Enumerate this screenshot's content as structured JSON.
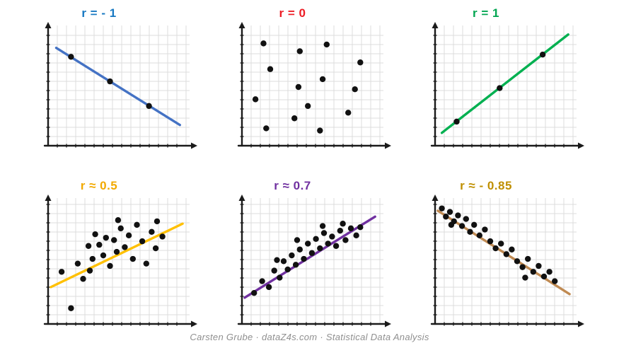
{
  "page": {
    "background": "#ffffff"
  },
  "style": {
    "grid_color": "#dcdcdc",
    "axis_color": "#1a1a1a",
    "point_color": "#111111"
  },
  "footer": {
    "text": "Carsten Grube · dataZ4s.com · Statistical Data Analysis"
  },
  "chart_data": [
    {
      "type": "scatter",
      "title": "r = - 1",
      "title_color": "#1778c2",
      "line_color": "#4472c4",
      "xlim": [
        0,
        10
      ],
      "ylim": [
        0,
        10
      ],
      "grid": true,
      "trendline": {
        "x1": 0.5,
        "y1": 8.5,
        "x2": 9.7,
        "y2": 1.6
      },
      "points": [
        [
          1.6,
          7.7
        ],
        [
          4.5,
          5.5
        ],
        [
          7.4,
          3.3
        ]
      ]
    },
    {
      "type": "scatter",
      "title": "r = 0",
      "title_color": "#ed1c24",
      "line_color": null,
      "xlim": [
        0,
        10
      ],
      "ylim": [
        0,
        10
      ],
      "grid": true,
      "trendline": null,
      "points": [
        [
          1.5,
          8.9
        ],
        [
          4.2,
          8.2
        ],
        [
          6.2,
          8.8
        ],
        [
          8.7,
          7.2
        ],
        [
          2.0,
          6.6
        ],
        [
          5.9,
          5.7
        ],
        [
          4.1,
          5.0
        ],
        [
          8.3,
          4.8
        ],
        [
          0.9,
          3.9
        ],
        [
          4.8,
          3.3
        ],
        [
          7.8,
          2.7
        ],
        [
          1.7,
          1.3
        ],
        [
          5.7,
          1.1
        ],
        [
          3.8,
          2.2
        ]
      ]
    },
    {
      "type": "scatter",
      "title": "r = 1",
      "title_color": "#00a550",
      "line_color": "#00b050",
      "xlim": [
        0,
        10
      ],
      "ylim": [
        0,
        10
      ],
      "grid": true,
      "trendline": {
        "x1": 0.4,
        "y1": 0.9,
        "x2": 9.8,
        "y2": 9.7
      },
      "points": [
        [
          1.5,
          1.9
        ],
        [
          4.7,
          4.9
        ],
        [
          7.9,
          7.9
        ]
      ]
    },
    {
      "type": "scatter",
      "title": "r ≈ 0.5",
      "title_color": "#f2a900",
      "line_color": "#ffc000",
      "xlim": [
        0,
        10
      ],
      "ylim": [
        0,
        10
      ],
      "grid": true,
      "trendline": {
        "x1": 0.1,
        "y1": 2.9,
        "x2": 9.9,
        "y2": 8.3
      },
      "points": [
        [
          0.9,
          4.2
        ],
        [
          1.6,
          1.1
        ],
        [
          2.1,
          4.9
        ],
        [
          2.5,
          3.6
        ],
        [
          2.9,
          6.4
        ],
        [
          3.2,
          5.3
        ],
        [
          3.4,
          7.4
        ],
        [
          3.7,
          6.5
        ],
        [
          4.0,
          5.6
        ],
        [
          4.2,
          7.1
        ],
        [
          4.5,
          4.7
        ],
        [
          4.8,
          6.9
        ],
        [
          5.0,
          5.9
        ],
        [
          5.3,
          7.9
        ],
        [
          5.6,
          6.3
        ],
        [
          5.9,
          7.3
        ],
        [
          6.2,
          5.3
        ],
        [
          6.5,
          8.2
        ],
        [
          6.9,
          6.8
        ],
        [
          7.2,
          4.9
        ],
        [
          7.6,
          7.6
        ],
        [
          8.0,
          8.5
        ],
        [
          8.4,
          7.2
        ],
        [
          3.0,
          4.3
        ],
        [
          5.1,
          8.6
        ],
        [
          7.9,
          6.2
        ]
      ]
    },
    {
      "type": "scatter",
      "title": "r ≈ 0.7",
      "title_color": "#7030a0",
      "line_color": "#7030a0",
      "xlim": [
        0,
        10
      ],
      "ylim": [
        0,
        10
      ],
      "grid": true,
      "trendline": {
        "x1": 0.1,
        "y1": 2.0,
        "x2": 9.8,
        "y2": 8.9
      },
      "points": [
        [
          0.8,
          2.4
        ],
        [
          1.4,
          3.4
        ],
        [
          1.9,
          2.9
        ],
        [
          2.3,
          4.3
        ],
        [
          2.7,
          3.7
        ],
        [
          3.0,
          5.1
        ],
        [
          3.3,
          4.4
        ],
        [
          3.6,
          5.6
        ],
        [
          3.9,
          4.8
        ],
        [
          4.2,
          6.1
        ],
        [
          4.5,
          5.3
        ],
        [
          4.8,
          6.6
        ],
        [
          5.1,
          5.8
        ],
        [
          5.4,
          7.0
        ],
        [
          5.7,
          6.2
        ],
        [
          6.0,
          7.5
        ],
        [
          6.3,
          6.6
        ],
        [
          6.6,
          7.2
        ],
        [
          6.9,
          6.4
        ],
        [
          7.2,
          7.7
        ],
        [
          7.6,
          6.9
        ],
        [
          8.0,
          7.9
        ],
        [
          8.4,
          7.3
        ],
        [
          2.5,
          5.2
        ],
        [
          4.0,
          6.9
        ],
        [
          5.9,
          8.1
        ],
        [
          7.4,
          8.3
        ],
        [
          8.7,
          8.0
        ]
      ]
    },
    {
      "type": "scatter",
      "title": "r ≈ - 0.85",
      "title_color": "#bf8f00",
      "line_color": "#c08a52",
      "xlim": [
        0,
        10
      ],
      "ylim": [
        0,
        10
      ],
      "grid": true,
      "trendline": {
        "x1": 0.1,
        "y1": 9.4,
        "x2": 9.9,
        "y2": 2.3
      },
      "points": [
        [
          0.4,
          9.6
        ],
        [
          0.7,
          8.9
        ],
        [
          1.0,
          9.3
        ],
        [
          1.3,
          8.5
        ],
        [
          1.6,
          9.0
        ],
        [
          1.9,
          8.1
        ],
        [
          2.2,
          8.7
        ],
        [
          2.5,
          7.6
        ],
        [
          2.8,
          8.2
        ],
        [
          3.2,
          7.3
        ],
        [
          3.6,
          7.8
        ],
        [
          4.0,
          6.8
        ],
        [
          4.4,
          6.2
        ],
        [
          4.8,
          6.6
        ],
        [
          5.2,
          5.7
        ],
        [
          5.6,
          6.1
        ],
        [
          6.0,
          5.1
        ],
        [
          6.4,
          4.6
        ],
        [
          6.8,
          5.3
        ],
        [
          7.2,
          4.2
        ],
        [
          7.6,
          4.7
        ],
        [
          8.0,
          3.8
        ],
        [
          8.4,
          4.2
        ],
        [
          1.1,
          8.2
        ],
        [
          6.6,
          3.7
        ],
        [
          8.8,
          3.4
        ]
      ]
    }
  ]
}
